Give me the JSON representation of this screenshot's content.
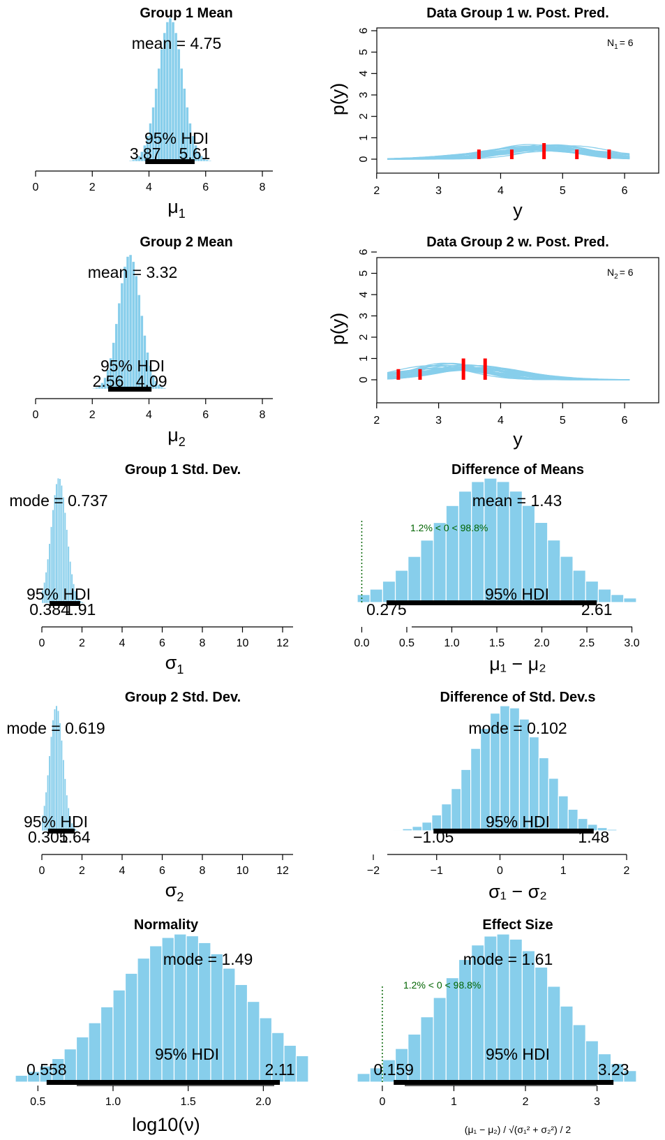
{
  "colors": {
    "bar": "#87ceeb",
    "hdi": "#000000",
    "data_points": "#ff0000",
    "comparison": "#006400"
  },
  "chart_data": [
    {
      "id": "mu1",
      "type": "histogram",
      "title": "Group 1 Mean",
      "xlabel_symbol": "μ",
      "xlabel_sub": "1",
      "xlim": [
        0,
        8
      ],
      "xticks": [
        "0",
        "2",
        "4",
        "6",
        "8"
      ],
      "summary_label": "mean",
      "summary_value": "4.75",
      "center": 4.75,
      "spread": 0.43,
      "hdi_label": "95% HDI",
      "hdi": [
        3.87,
        5.61
      ],
      "hdi_text": [
        "3.87",
        "5.61"
      ]
    },
    {
      "id": "mu2",
      "type": "histogram",
      "title": "Group 2 Mean",
      "xlabel_symbol": "μ",
      "xlabel_sub": "2",
      "xlim": [
        0,
        8
      ],
      "xticks": [
        "0",
        "2",
        "4",
        "6",
        "8"
      ],
      "summary_label": "mean",
      "summary_value": "3.32",
      "center": 3.32,
      "spread": 0.39,
      "hdi_label": "95% HDI",
      "hdi": [
        2.56,
        4.09
      ],
      "hdi_text": [
        "2.56",
        "4.09"
      ]
    },
    {
      "id": "sd1",
      "type": "histogram",
      "title": "Group 1 Std. Dev.",
      "xlabel_symbol": "σ",
      "xlabel_sub": "1",
      "xlim": [
        0,
        12
      ],
      "xticks": [
        "0",
        "2",
        "4",
        "6",
        "8",
        "10",
        "12"
      ],
      "summary_label": "mode",
      "summary_value": "0.737",
      "center": 0.85,
      "spread": 0.38,
      "hdi_label": "95% HDI",
      "hdi": [
        0.384,
        1.91
      ],
      "hdi_text": [
        "0.384",
        "1.91"
      ]
    },
    {
      "id": "sd2",
      "type": "histogram",
      "title": "Group 2 Std. Dev.",
      "xlabel_symbol": "σ",
      "xlabel_sub": "2",
      "xlim": [
        0,
        12
      ],
      "xticks": [
        "0",
        "2",
        "4",
        "6",
        "8",
        "10",
        "12"
      ],
      "summary_label": "mode",
      "summary_value": "0.619",
      "center": 0.72,
      "spread": 0.33,
      "hdi_label": "95% HDI",
      "hdi": [
        0.305,
        1.64
      ],
      "hdi_text": [
        "0.305",
        "1.64"
      ]
    },
    {
      "id": "norm",
      "type": "histogram",
      "title": "Normality",
      "xlabel_text": "log10(ν)",
      "xlim": [
        0.35,
        2.3
      ],
      "xticks": [
        "0.5",
        "1.0",
        "1.5",
        "2.0"
      ],
      "summary_label": "mode",
      "summary_value": "1.49",
      "center": 1.46,
      "spread": 0.43,
      "hdi_label": "95% HDI",
      "hdi": [
        0.558,
        2.11
      ],
      "hdi_text": [
        "0.558",
        "2.11"
      ]
    },
    {
      "id": "diffmu",
      "type": "histogram",
      "title": "Difference of Means",
      "xlabel_expr": "μ₁ − μ₂",
      "xlim": [
        -0.05,
        3.05
      ],
      "xticks": [
        "0.0",
        "0.5",
        "1.0",
        "1.5",
        "2.0",
        "2.5",
        "3.0"
      ],
      "summary_label": "mean",
      "summary_value": "1.43",
      "center": 1.43,
      "spread": 0.6,
      "hdi_label": "95% HDI",
      "hdi": [
        0.275,
        2.61
      ],
      "hdi_text": [
        "0.275",
        "2.61"
      ],
      "comp_value": 0,
      "comp_text": "1.2% < 0 < 98.8%"
    },
    {
      "id": "diffsd",
      "type": "histogram",
      "title": "Difference of Std. Dev.s",
      "xlabel_expr": "σ₁ − σ₂",
      "xlim": [
        -2,
        2
      ],
      "xticks": [
        "−2",
        "−1",
        "0",
        "1",
        "2"
      ],
      "summary_label": "mode",
      "summary_value": "0.102",
      "center": 0.12,
      "spread": 0.55,
      "hdi_label": "95% HDI",
      "hdi": [
        -1.05,
        1.48
      ],
      "hdi_text": [
        "−1.05",
        "1.48"
      ]
    },
    {
      "id": "effect",
      "type": "histogram",
      "title": "Effect Size",
      "xlim": [
        -0.35,
        3.55
      ],
      "xticks": [
        "0",
        "1",
        "2",
        "3"
      ],
      "summary_label": "mode",
      "summary_value": "1.61",
      "center": 1.65,
      "spread": 0.8,
      "hdi_label": "95% HDI",
      "hdi": [
        0.159,
        3.23
      ],
      "hdi_text": [
        "0.159",
        "3.23"
      ],
      "comp_value": 0,
      "comp_text": "1.2% < 0 < 98.8%"
    },
    {
      "id": "pp1",
      "type": "line",
      "title": "Data Group 1 w. Post. Pred.",
      "xlabel": "y",
      "ylabel": "p(y)",
      "xlim": [
        2,
        6.1
      ],
      "ylim": [
        0,
        6
      ],
      "xticks": [
        "2",
        "3",
        "4",
        "5",
        "6"
      ],
      "yticks": [
        "0",
        "1",
        "2",
        "3",
        "4",
        "5",
        "6"
      ],
      "n_label": "N",
      "n_sub": "1",
      "n_value": "= 6",
      "data_points": [
        3.65,
        4.18,
        4.7,
        5.23,
        5.75
      ],
      "data_heights": [
        0.45,
        0.45,
        0.75,
        0.45,
        0.45
      ],
      "curve_center": 4.75,
      "curve_scale": 0.75
    },
    {
      "id": "pp2",
      "type": "line",
      "title": "Data Group 2 w. Post. Pred.",
      "xlabel": "y",
      "ylabel": "p(y)",
      "xlim": [
        2,
        6.1
      ],
      "ylim": [
        0,
        6
      ],
      "xticks": [
        "2",
        "3",
        "4",
        "5",
        "6"
      ],
      "yticks": [
        "0",
        "1",
        "2",
        "3",
        "4",
        "5",
        "6"
      ],
      "n_label": "N",
      "n_sub": "2",
      "n_value": "= 6",
      "data_points": [
        2.35,
        2.7,
        3.4,
        3.75
      ],
      "data_heights": [
        0.5,
        0.5,
        1.0,
        1.0
      ],
      "curve_center": 3.32,
      "curve_scale": 0.68
    }
  ]
}
